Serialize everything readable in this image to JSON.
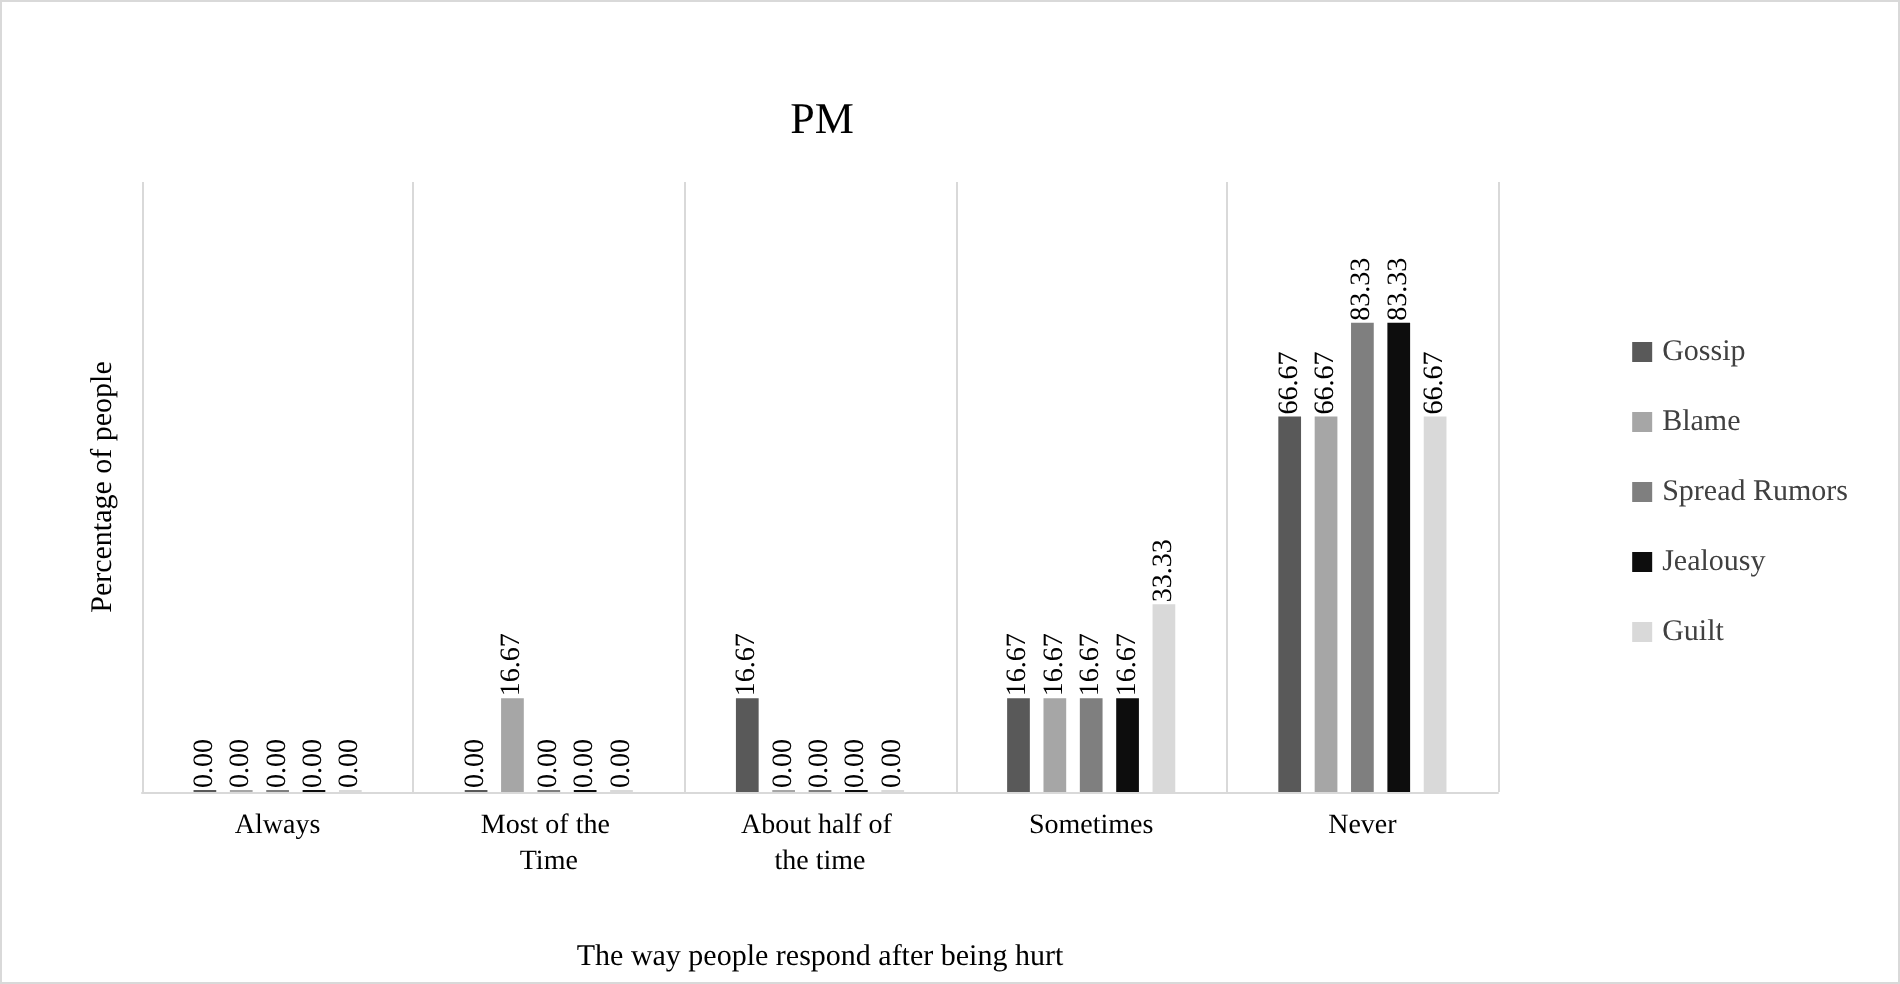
{
  "chart_data": {
    "type": "bar",
    "title": "PM",
    "xlabel": "The way people respond after being hurt",
    "ylabel": "Percentage of people",
    "categories": [
      "Always",
      "Most of the Time",
      "About half of the time",
      "Sometimes",
      "Never"
    ],
    "series": [
      {
        "name": "Gossip",
        "color": "#595959",
        "values": [
          0.0,
          0.0,
          16.67,
          16.67,
          66.67
        ],
        "value_labels": [
          "0.00",
          "0.00",
          "16.67",
          "16.67",
          "66.67"
        ]
      },
      {
        "name": "Blame",
        "color": "#a6a6a6",
        "values": [
          0.0,
          16.67,
          0.0,
          16.67,
          66.67
        ],
        "value_labels": [
          "0.00",
          "16.67",
          "0.00",
          "16.67",
          "66.67"
        ]
      },
      {
        "name": "Spread Rumors",
        "color": "#7f7f7f",
        "values": [
          0.0,
          0.0,
          0.0,
          16.67,
          83.33
        ],
        "value_labels": [
          "0.00",
          "0.00",
          "0.00",
          "16.67",
          "83.33"
        ]
      },
      {
        "name": "Jealousy",
        "color": "#0d0d0d",
        "values": [
          0.0,
          0.0,
          0.0,
          16.67,
          83.33
        ],
        "value_labels": [
          "0.00",
          "0.00",
          "0.00",
          "16.67",
          "83.33"
        ]
      },
      {
        "name": "Guilt",
        "color": "#d9d9d9",
        "values": [
          0.0,
          0.0,
          0.0,
          33.33,
          66.67
        ],
        "value_labels": [
          "0.00",
          "0.00",
          "0.00",
          "33.33",
          "66.67"
        ]
      }
    ],
    "grid": "x",
    "legend": "right"
  }
}
